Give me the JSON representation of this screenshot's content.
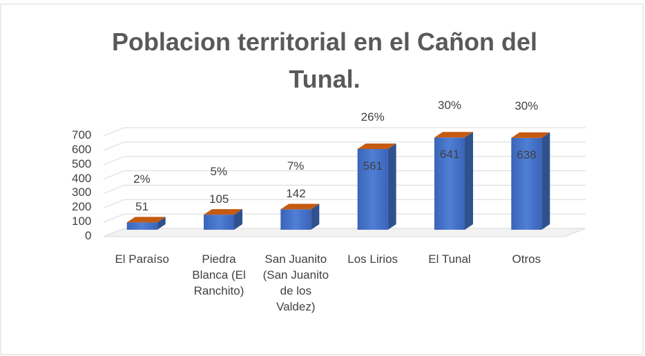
{
  "chart_data": {
    "type": "bar3d",
    "title": "Poblacion territorial en el Cañon del Tunal.",
    "categories": [
      "El Paraíso",
      "Piedra Blanca (El Ranchito)",
      "San Juanito (San Juanito de los Valdez)",
      "Los Lirios",
      "El Tunal",
      "Otros"
    ],
    "values": [
      51,
      105,
      142,
      561,
      641,
      638
    ],
    "percent_labels": [
      "2%",
      "5%",
      "7%",
      "26%",
      "30%",
      "30%"
    ],
    "color": "#4472c4",
    "top_color": "#c55a11",
    "ylim": [
      0,
      700
    ],
    "yticks": [
      0,
      100,
      200,
      300,
      400,
      500,
      600,
      700
    ],
    "grid": true
  }
}
